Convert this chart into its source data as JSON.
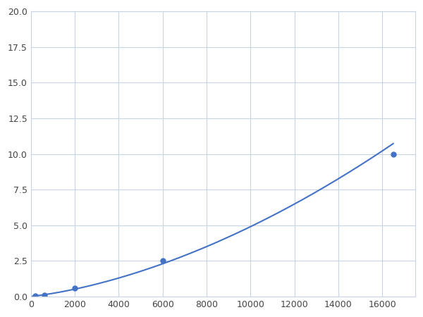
{
  "x": [
    200,
    600,
    2000,
    6000,
    16500
  ],
  "y": [
    0.05,
    0.1,
    0.6,
    2.5,
    10.0
  ],
  "line_color": "#4472c4",
  "marker_color": "#4472c4",
  "marker_size": 5,
  "xlim": [
    0,
    17500
  ],
  "ylim": [
    0,
    20.0
  ],
  "xticks": [
    0,
    2000,
    4000,
    6000,
    8000,
    10000,
    12000,
    14000,
    16000
  ],
  "yticks": [
    0.0,
    2.5,
    5.0,
    7.5,
    10.0,
    12.5,
    15.0,
    17.5,
    20.0
  ],
  "grid": true,
  "background_color": "#ffffff"
}
